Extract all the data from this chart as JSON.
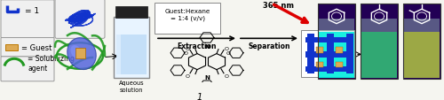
{
  "background_color": "#f5f5f0",
  "label1": "= 1",
  "label2": "= Guest",
  "label3": "= Solubilizing\nagent",
  "aqueous_label": "Aqueous\nsolution",
  "box_label": "Guest:Hexane\n= 1:4 (v/v)",
  "extraction_label": "Extraction",
  "separation_label": "Separation",
  "nm_label": "365 nm",
  "compound_label": "1",
  "tube_fills": [
    "#00eedd",
    "#22cc88",
    "#bbcc44"
  ],
  "tube_bg": "#1a006e",
  "purple_bg": "#220055",
  "arrow_color": "#dd0000",
  "blue_color": "#1133cc",
  "green_color": "#229922",
  "orange_color": "#cc8833",
  "legend_edge": "#999999",
  "legend_face": "#f0f0f0"
}
